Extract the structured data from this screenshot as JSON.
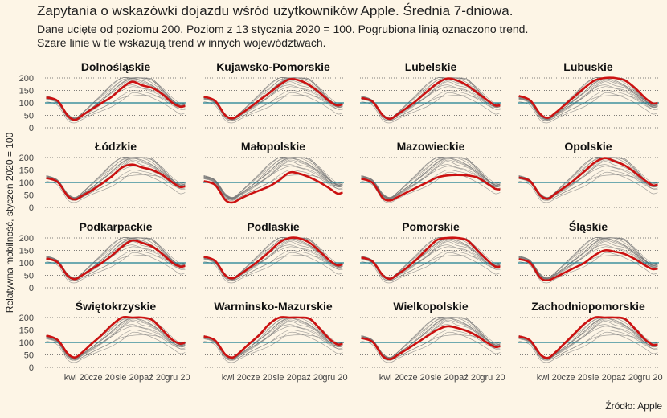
{
  "chart_data": {
    "type": "line",
    "title": "Zapytania o wskazówki dojazdu wśród użytkowników Apple. Średnia 7-dniowa.",
    "subtitle_lines": [
      "Dane ucięte od poziomu 200. Poziom z 13 stycznia 2020 = 100. Pogrubiona linią oznaczono trend.",
      "Szare linie w tle wskazują trend w innych województwach."
    ],
    "ylabel": "Relatywna mobilność, styczeń 2020 = 100",
    "caption": "Źródło: Apple",
    "ylim": [
      0,
      200
    ],
    "y_ticks": [
      0,
      50,
      100,
      150,
      200
    ],
    "xlim_month": [
      1.5,
      12.7
    ],
    "x_ticks": [
      {
        "month": 4,
        "label": "kwi 20"
      },
      {
        "month": 6,
        "label": "cze 20"
      },
      {
        "month": 8,
        "label": "sie 20"
      },
      {
        "month": 10,
        "label": "paź 20"
      },
      {
        "month": 12,
        "label": "gru 20"
      }
    ],
    "reference_line": 100,
    "months": [
      1.6,
      2.5,
      3.3,
      3.9,
      4.5,
      5.2,
      6.0,
      6.8,
      7.6,
      8.4,
      9.2,
      10.0,
      10.8,
      11.6,
      12.2,
      12.6
    ],
    "colors": {
      "trend": "#cc1111",
      "reference": "#1a7d91",
      "others": "#777777",
      "grid": "#555555"
    },
    "series": [
      {
        "name": "Dolnośląskie",
        "values": [
          122,
          108,
          48,
          32,
          52,
          75,
          100,
          125,
          160,
          185,
          170,
          160,
          135,
          100,
          85,
          88
        ]
      },
      {
        "name": "Kujawsko-Pomorskie",
        "values": [
          125,
          108,
          50,
          38,
          55,
          80,
          110,
          140,
          172,
          195,
          190,
          170,
          140,
          105,
          90,
          95
        ]
      },
      {
        "name": "Lubelskie",
        "values": [
          120,
          105,
          50,
          36,
          55,
          80,
          110,
          145,
          178,
          198,
          190,
          170,
          140,
          110,
          90,
          90
        ]
      },
      {
        "name": "Lubuskie",
        "values": [
          128,
          110,
          55,
          40,
          60,
          90,
          125,
          160,
          190,
          200,
          200,
          190,
          160,
          120,
          98,
          100
        ]
      },
      {
        "name": "Łódzkie",
        "values": [
          118,
          102,
          45,
          32,
          48,
          68,
          95,
          125,
          160,
          172,
          160,
          150,
          130,
          100,
          82,
          85
        ]
      },
      {
        "name": "Małopolskie",
        "values": [
          105,
          90,
          30,
          20,
          35,
          52,
          68,
          85,
          110,
          140,
          135,
          120,
          100,
          75,
          55,
          60
        ]
      },
      {
        "name": "Mazowieckie",
        "values": [
          115,
          98,
          38,
          28,
          42,
          60,
          80,
          100,
          120,
          128,
          130,
          128,
          120,
          95,
          75,
          72
        ]
      },
      {
        "name": "Opolskie",
        "values": [
          120,
          105,
          48,
          35,
          55,
          80,
          110,
          145,
          180,
          198,
          185,
          168,
          140,
          108,
          88,
          92
        ]
      },
      {
        "name": "Podkarpackie",
        "values": [
          118,
          102,
          48,
          35,
          52,
          75,
          100,
          130,
          165,
          190,
          180,
          165,
          135,
          100,
          85,
          88
        ]
      },
      {
        "name": "Podlaskie",
        "values": [
          125,
          108,
          50,
          38,
          55,
          80,
          110,
          145,
          182,
          200,
          198,
          180,
          145,
          108,
          90,
          95
        ]
      },
      {
        "name": "Pomorskie",
        "values": [
          122,
          105,
          50,
          36,
          55,
          80,
          115,
          155,
          192,
          200,
          200,
          190,
          150,
          110,
          85,
          85
        ]
      },
      {
        "name": "Śląskie",
        "values": [
          115,
          100,
          40,
          30,
          42,
          60,
          80,
          100,
          130,
          150,
          145,
          135,
          115,
          90,
          75,
          78
        ]
      },
      {
        "name": "Świętokrzyskie",
        "values": [
          128,
          110,
          55,
          40,
          62,
          95,
          130,
          170,
          200,
          200,
          200,
          190,
          150,
          110,
          95,
          100
        ]
      },
      {
        "name": "Warminsko-Mazurskie",
        "values": [
          125,
          108,
          52,
          40,
          62,
          95,
          130,
          175,
          200,
          200,
          200,
          195,
          155,
          112,
          92,
          95
        ]
      },
      {
        "name": "Wielkopolskie",
        "values": [
          118,
          102,
          45,
          33,
          50,
          72,
          98,
          125,
          150,
          165,
          158,
          145,
          125,
          98,
          82,
          85
        ]
      },
      {
        "name": "Zachodniopomorskie",
        "values": [
          125,
          108,
          52,
          38,
          60,
          95,
          135,
          175,
          200,
          200,
          200,
          195,
          155,
          112,
          90,
          92
        ]
      }
    ]
  }
}
